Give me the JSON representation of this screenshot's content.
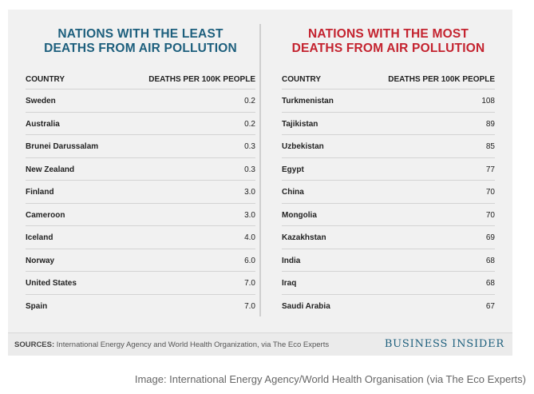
{
  "chart_data": [
    {
      "type": "table",
      "title_lines": [
        "NATIONS WITH THE LEAST",
        "DEATHS FROM AIR POLLUTION"
      ],
      "columns": [
        "COUNTRY",
        "DEATHS PER 100K PEOPLE"
      ],
      "rows": [
        {
          "country": "Sweden",
          "value": "0.2"
        },
        {
          "country": "Australia",
          "value": "0.2"
        },
        {
          "country": "Brunei Darussalam",
          "value": "0.3"
        },
        {
          "country": "New Zealand",
          "value": "0.3"
        },
        {
          "country": "Finland",
          "value": "3.0"
        },
        {
          "country": "Cameroon",
          "value": "3.0"
        },
        {
          "country": "Iceland",
          "value": "4.0"
        },
        {
          "country": "Norway",
          "value": "6.0"
        },
        {
          "country": "United States",
          "value": "7.0"
        },
        {
          "country": "Spain",
          "value": "7.0"
        }
      ],
      "title_color": "#1d5f7d"
    },
    {
      "type": "table",
      "title_lines": [
        "NATIONS WITH THE MOST",
        "DEATHS FROM AIR POLLUTION"
      ],
      "columns": [
        "COUNTRY",
        "DEATHS PER 100K PEOPLE"
      ],
      "rows": [
        {
          "country": "Turkmenistan",
          "value": "108"
        },
        {
          "country": "Tajikistan",
          "value": "89"
        },
        {
          "country": "Uzbekistan",
          "value": "85"
        },
        {
          "country": "Egypt",
          "value": "77"
        },
        {
          "country": "China",
          "value": "70"
        },
        {
          "country": "Mongolia",
          "value": "70"
        },
        {
          "country": "Kazakhstan",
          "value": "69"
        },
        {
          "country": "India",
          "value": "68"
        },
        {
          "country": "Iraq",
          "value": "68"
        },
        {
          "country": "Saudi Arabia",
          "value": "67"
        }
      ],
      "title_color": "#c4232f"
    }
  ],
  "footer": {
    "sources_label": "SOURCES:",
    "sources_text": " International Energy Agency and World Health Organization, via The Eco Experts",
    "logo": "BUSINESS INSIDER"
  },
  "caption": "Image: International Energy Agency/World Health Organisation (via The Eco Experts)"
}
